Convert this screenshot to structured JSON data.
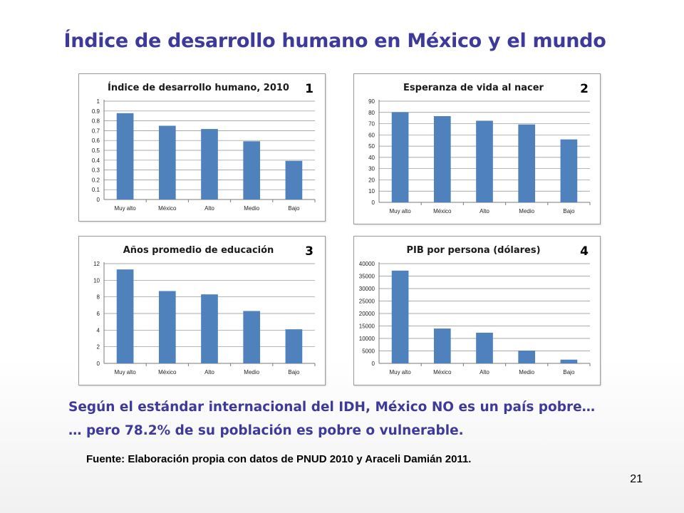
{
  "slide": {
    "title": "Índice de desarrollo humano en México y el mundo",
    "line1": "Según el estándar internacional del IDH, México NO es un país pobre…",
    "line2": "… pero 78.2% de su población es pobre o vulnerable.",
    "source": "Fuente: Elaboración propia con datos de PNUD 2010 y Araceli Damián 2011.",
    "page_number": "21"
  },
  "colors": {
    "bar": "#4f81bd",
    "grid": "#8c8c8c",
    "title": "#3d3a9a"
  },
  "chart_data": [
    {
      "type": "bar",
      "number": "1",
      "title": "Índice de desarrollo humano, 2010",
      "categories": [
        "Muy alto",
        "México",
        "Alto",
        "Medio",
        "Bajo"
      ],
      "values": [
        0.878,
        0.75,
        0.717,
        0.592,
        0.393
      ],
      "ylim": [
        0,
        1
      ],
      "ticks": [
        "0",
        "0.1",
        "0.2",
        "0.3",
        "0.4",
        "0.5",
        "0.6",
        "0.7",
        "0.8",
        "0.9",
        "1"
      ],
      "grid": true
    },
    {
      "type": "bar",
      "number": "2",
      "title": "Esperanza de vida al nacer",
      "categories": [
        "Muy alto",
        "México",
        "Alto",
        "Medio",
        "Bajo"
      ],
      "values": [
        80.3,
        76.7,
        72.6,
        69.3,
        56
      ],
      "ylim": [
        0,
        90
      ],
      "ticks": [
        "0",
        "10",
        "20",
        "30",
        "40",
        "50",
        "60",
        "70",
        "80",
        "90"
      ],
      "grid": true
    },
    {
      "type": "bar",
      "number": "3",
      "title": "Años promedio de educación",
      "categories": [
        "Muy alto",
        "México",
        "Alto",
        "Medio",
        "Bajo"
      ],
      "values": [
        11.3,
        8.7,
        8.3,
        6.3,
        4.1
      ],
      "ylim": [
        0,
        12
      ],
      "ticks": [
        "0",
        "2",
        "4",
        "6",
        "8",
        "10",
        "12"
      ],
      "grid": true
    },
    {
      "type": "bar",
      "number": "4",
      "title": "PIB por persona (dólares)",
      "categories": [
        "Muy alto",
        "México",
        "Alto",
        "Medio",
        "Bajo"
      ],
      "values": [
        37200,
        13970,
        12300,
        5100,
        1500
      ],
      "ylim": [
        0,
        40000
      ],
      "ticks": [
        "0",
        "5000",
        "10000",
        "15000",
        "20000",
        "25000",
        "30000",
        "35000",
        "40000"
      ],
      "grid": true
    }
  ]
}
